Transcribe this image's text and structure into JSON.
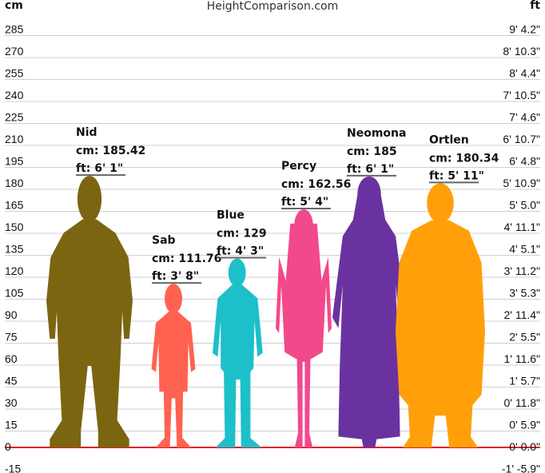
{
  "header": {
    "left_unit": "cm",
    "site": "HeightComparison.com",
    "right_unit": "ft"
  },
  "colors": {
    "grid": "#d0d0d0",
    "ground": "#e0201f",
    "text": "#111111",
    "label_line": "#666666"
  },
  "chart_data": {
    "type": "bar",
    "title": "",
    "ylabel_left": "cm",
    "ylabel_right": "ft",
    "ylim": [
      -15,
      285
    ],
    "y_ticks_cm": [
      285,
      270,
      255,
      240,
      225,
      210,
      195,
      180,
      165,
      150,
      135,
      120,
      105,
      90,
      75,
      60,
      45,
      30,
      15,
      0,
      -15
    ],
    "y_ticks_ft": [
      "9' 4.2\"",
      "8' 10.3\"",
      "8' 4.4\"",
      "7' 10.5\"",
      "7' 4.6\"",
      "6' 10.7\"",
      "6' 4.8\"",
      "5' 10.9\"",
      "5' 5.0\"",
      "4' 11.1\"",
      "4' 5.1\"",
      "3' 11.2\"",
      "3' 5.3\"",
      "2' 11.4\"",
      "2' 5.5\"",
      "1' 11.6\"",
      "1' 5.7\"",
      "0' 11.8\"",
      "0' 5.9\"",
      "0' 0.0\"",
      "-1' -5.9\""
    ],
    "grid": true,
    "categories": [
      "Nid",
      "Sab",
      "Blue",
      "Percy",
      "Neomona",
      "Ortlen"
    ],
    "values": [
      185.42,
      111.76,
      129,
      162.56,
      185,
      180.34
    ],
    "series": [
      {
        "name": "Nid",
        "cm_label": "cm: 185.42",
        "ft_label": "ft: 6' 1\"",
        "cm": 185.42,
        "color": "#7b6511",
        "build": "heavy"
      },
      {
        "name": "Sab",
        "cm_label": "cm: 111.76",
        "ft_label": "ft: 3' 8\"",
        "cm": 111.76,
        "color": "#ff6250",
        "build": "child"
      },
      {
        "name": "Blue",
        "cm_label": "cm: 129",
        "ft_label": "ft: 4' 3\"",
        "cm": 129,
        "color": "#1dbfc9",
        "build": "boy"
      },
      {
        "name": "Percy",
        "cm_label": "cm: 162.56",
        "ft_label": "ft: 5' 4\"",
        "cm": 162.56,
        "color": "#f2498b",
        "build": "woman"
      },
      {
        "name": "Neomona",
        "cm_label": "cm: 185",
        "ft_label": "ft: 6' 1\"",
        "cm": 185,
        "color": "#6a32a0",
        "build": "robe"
      },
      {
        "name": "Ortlen",
        "cm_label": "cm: 180.34",
        "ft_label": "ft: 5' 11\"",
        "cm": 180.34,
        "color": "#ffa00a",
        "build": "coat"
      }
    ]
  }
}
